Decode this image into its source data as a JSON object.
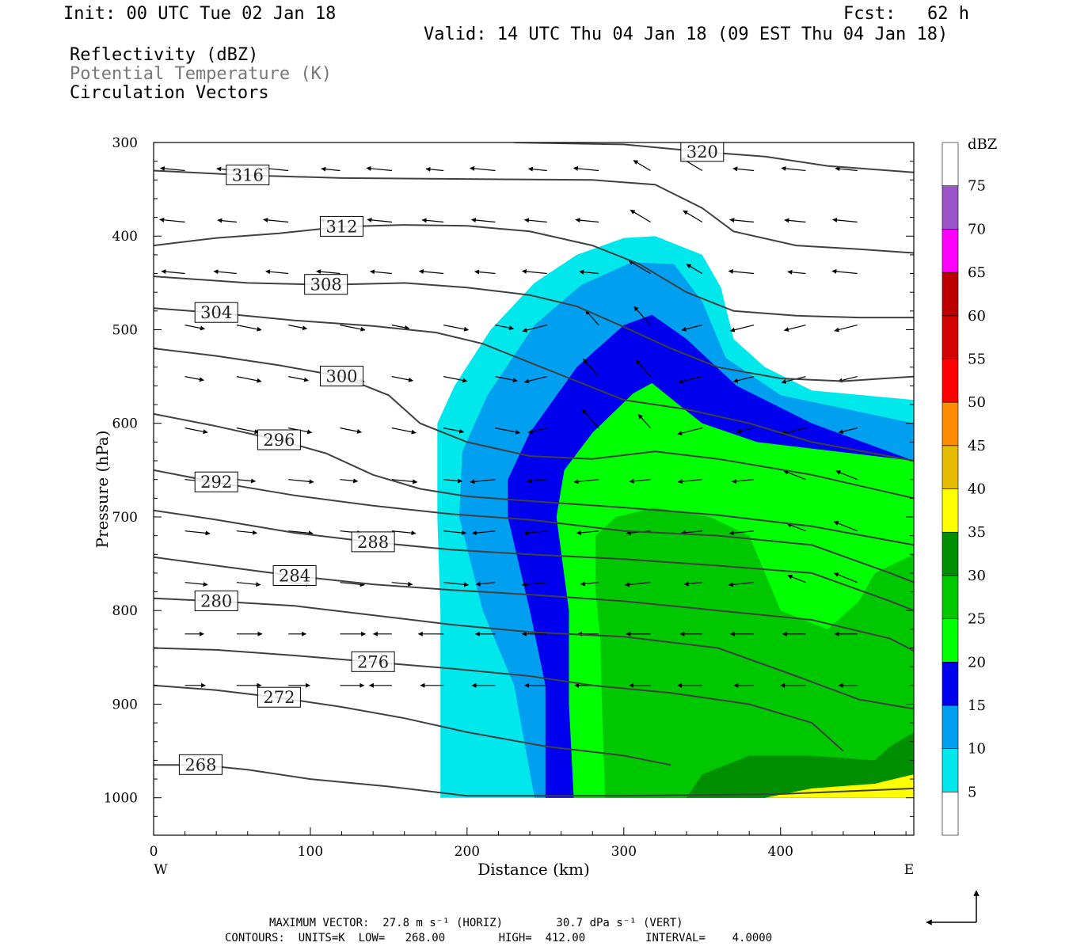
{
  "header": {
    "init": "Init: 00 UTC Tue 02 Jan 18",
    "fcst": "Fcst:   62 h",
    "valid": "Valid: 14 UTC Thu 04 Jan 18 (09 EST Thu 04 Jan 18)",
    "fields": [
      "Reflectivity (dBZ)",
      "Potential Temperature (K)",
      "Circulation Vectors"
    ]
  },
  "footer": {
    "max_vector": "MAXIMUM VECTOR:  27.8 m s⁻¹ (HORIZ)        30.7 dPa s⁻¹ (VERT)",
    "contours": "CONTOURS:  UNITS=K  LOW=   268.00        HIGH=  412.00         INTERVAL=    4.0000"
  },
  "chart_data": {
    "type": "cross-section",
    "xlabel": "Distance (km)",
    "ylabel": "Pressure (hPa)",
    "x_left_label": "W",
    "x_right_label": "E",
    "xlim": [
      0,
      485
    ],
    "ylim": [
      1040,
      300
    ],
    "x_ticks": [
      0,
      100,
      200,
      300,
      400
    ],
    "y_ticks": [
      300,
      400,
      500,
      600,
      700,
      800,
      900,
      1000
    ],
    "colorbar": {
      "title": "dBZ",
      "levels": [
        5,
        10,
        15,
        20,
        25,
        30,
        35,
        40,
        45,
        50,
        55,
        60,
        65,
        70,
        75
      ],
      "colors": [
        "#00e8ec",
        "#009ff0",
        "#0000ee",
        "#00ff00",
        "#00c800",
        "#008f00",
        "#ffff00",
        "#e6bc00",
        "#ff8c00",
        "#ff0000",
        "#d50000",
        "#bc0000",
        "#ff00ff",
        "#9a55c9"
      ]
    },
    "reflectivity_shading": [
      {
        "dbz_min": 5,
        "color": "#00e8ec",
        "outline": [
          [
            183,
            1000
          ],
          [
            183,
            900
          ],
          [
            183,
            800
          ],
          [
            181,
            700
          ],
          [
            181,
            600
          ],
          [
            192,
            560
          ],
          [
            215,
            500
          ],
          [
            243,
            450
          ],
          [
            270,
            420
          ],
          [
            300,
            402
          ],
          [
            320,
            400
          ],
          [
            350,
            420
          ],
          [
            362,
            455
          ],
          [
            370,
            510
          ],
          [
            390,
            540
          ],
          [
            420,
            565
          ],
          [
            485,
            575
          ],
          [
            485,
            1000
          ]
        ]
      },
      {
        "dbz_min": 10,
        "color": "#009ff0",
        "outline": [
          [
            243,
            1000
          ],
          [
            230,
            880
          ],
          [
            210,
            800
          ],
          [
            195,
            700
          ],
          [
            197,
            630
          ],
          [
            213,
            570
          ],
          [
            243,
            495
          ],
          [
            273,
            452
          ],
          [
            305,
            428
          ],
          [
            332,
            430
          ],
          [
            350,
            470
          ],
          [
            365,
            530
          ],
          [
            400,
            570
          ],
          [
            485,
            600
          ],
          [
            485,
            1000
          ]
        ]
      },
      {
        "dbz_min": 15,
        "color": "#0000ee",
        "outline": [
          [
            250,
            1000
          ],
          [
            250,
            880
          ],
          [
            240,
            800
          ],
          [
            226,
            700
          ],
          [
            226,
            660
          ],
          [
            240,
            610
          ],
          [
            270,
            540
          ],
          [
            300,
            495
          ],
          [
            318,
            484
          ],
          [
            340,
            510
          ],
          [
            372,
            560
          ],
          [
            420,
            600
          ],
          [
            485,
            640
          ],
          [
            485,
            1000
          ]
        ]
      },
      {
        "dbz_min": 20,
        "color": "#00ff00",
        "outline": [
          [
            268,
            1000
          ],
          [
            265,
            900
          ],
          [
            265,
            800
          ],
          [
            257,
            700
          ],
          [
            262,
            650
          ],
          [
            280,
            610
          ],
          [
            306,
            568
          ],
          [
            318,
            557
          ],
          [
            335,
            580
          ],
          [
            350,
            600
          ],
          [
            385,
            620
          ],
          [
            485,
            640
          ],
          [
            485,
            1000
          ]
        ]
      },
      {
        "dbz_min": 25,
        "color": "#00c800",
        "outline": [
          [
            288,
            1000
          ],
          [
            286,
            900
          ],
          [
            285,
            830
          ],
          [
            282,
            780
          ],
          [
            282,
            720
          ],
          [
            295,
            700
          ],
          [
            320,
            690
          ],
          [
            355,
            700
          ],
          [
            380,
            720
          ],
          [
            390,
            760
          ],
          [
            400,
            800
          ],
          [
            430,
            820
          ],
          [
            450,
            790
          ],
          [
            460,
            760
          ],
          [
            485,
            740
          ],
          [
            485,
            1000
          ]
        ]
      },
      {
        "dbz_min": 30,
        "color": "#008f00",
        "outline": [
          [
            340,
            1000
          ],
          [
            350,
            975
          ],
          [
            380,
            955
          ],
          [
            420,
            955
          ],
          [
            460,
            960
          ],
          [
            470,
            945
          ],
          [
            485,
            930
          ],
          [
            485,
            1000
          ]
        ]
      },
      {
        "dbz_min": 35,
        "color": "#ffff00",
        "outline": [
          [
            390,
            1000
          ],
          [
            420,
            990
          ],
          [
            460,
            985
          ],
          [
            485,
            975
          ],
          [
            485,
            1000
          ]
        ]
      }
    ],
    "theta_contours": [
      {
        "label": "268",
        "points": [
          [
            0,
            965
          ],
          [
            30,
            965
          ],
          [
            60,
            970
          ],
          [
            100,
            980
          ],
          [
            150,
            988
          ],
          [
            200,
            998
          ],
          [
            300,
            998
          ],
          [
            400,
            996
          ],
          [
            485,
            990
          ]
        ]
      },
      {
        "label": "272",
        "points": [
          [
            0,
            880
          ],
          [
            40,
            885
          ],
          [
            80,
            893
          ],
          [
            120,
            903
          ],
          [
            160,
            915
          ],
          [
            200,
            930
          ],
          [
            250,
            945
          ],
          [
            300,
            955
          ],
          [
            330,
            965
          ]
        ]
      },
      {
        "label": "276",
        "points": [
          [
            0,
            840
          ],
          [
            40,
            842
          ],
          [
            90,
            848
          ],
          [
            140,
            855
          ],
          [
            190,
            862
          ],
          [
            240,
            870
          ],
          [
            280,
            880
          ],
          [
            330,
            888
          ],
          [
            380,
            900
          ],
          [
            420,
            920
          ],
          [
            440,
            950
          ]
        ]
      },
      {
        "label": "280",
        "points": [
          [
            0,
            787
          ],
          [
            40,
            790
          ],
          [
            90,
            795
          ],
          [
            140,
            805
          ],
          [
            190,
            815
          ],
          [
            240,
            823
          ],
          [
            300,
            828
          ],
          [
            360,
            840
          ],
          [
            410,
            870
          ],
          [
            450,
            895
          ],
          [
            485,
            905
          ]
        ]
      },
      {
        "label": "284",
        "points": [
          [
            0,
            743
          ],
          [
            40,
            752
          ],
          [
            90,
            763
          ],
          [
            140,
            772
          ],
          [
            190,
            778
          ],
          [
            240,
            783
          ],
          [
            300,
            790
          ],
          [
            360,
            800
          ],
          [
            420,
            810
          ],
          [
            470,
            830
          ],
          [
            485,
            843
          ]
        ]
      },
      {
        "label": "288",
        "points": [
          [
            0,
            693
          ],
          [
            40,
            703
          ],
          [
            90,
            717
          ],
          [
            140,
            727
          ],
          [
            190,
            735
          ],
          [
            240,
            740
          ],
          [
            300,
            745
          ],
          [
            360,
            752
          ],
          [
            420,
            760
          ],
          [
            470,
            790
          ],
          [
            485,
            800
          ]
        ]
      },
      {
        "label": "292",
        "points": [
          [
            0,
            650
          ],
          [
            40,
            663
          ],
          [
            90,
            677
          ],
          [
            140,
            688
          ],
          [
            190,
            697
          ],
          [
            240,
            703
          ],
          [
            300,
            715
          ],
          [
            360,
            720
          ],
          [
            420,
            730
          ],
          [
            470,
            760
          ],
          [
            485,
            770
          ]
        ]
      },
      {
        "label": "296",
        "points": [
          [
            0,
            590
          ],
          [
            40,
            603
          ],
          [
            80,
            618
          ],
          [
            110,
            632
          ],
          [
            140,
            655
          ],
          [
            170,
            670
          ],
          [
            200,
            678
          ],
          [
            240,
            683
          ],
          [
            300,
            690
          ],
          [
            360,
            698
          ],
          [
            420,
            710
          ],
          [
            485,
            730
          ]
        ]
      },
      {
        "label": "300",
        "points": [
          [
            0,
            520
          ],
          [
            40,
            528
          ],
          [
            80,
            538
          ],
          [
            120,
            550
          ],
          [
            150,
            570
          ],
          [
            170,
            600
          ],
          [
            200,
            620
          ],
          [
            240,
            635
          ],
          [
            280,
            638
          ],
          [
            320,
            630
          ],
          [
            360,
            638
          ],
          [
            420,
            655
          ],
          [
            485,
            680
          ]
        ]
      },
      {
        "label": "304",
        "points": [
          [
            0,
            477
          ],
          [
            40,
            482
          ],
          [
            90,
            490
          ],
          [
            140,
            496
          ],
          [
            180,
            503
          ],
          [
            210,
            515
          ],
          [
            240,
            535
          ],
          [
            270,
            555
          ],
          [
            300,
            575
          ],
          [
            340,
            585
          ],
          [
            380,
            600
          ],
          [
            420,
            620
          ],
          [
            485,
            640
          ]
        ]
      },
      {
        "label": "308",
        "points": [
          [
            0,
            443
          ],
          [
            60,
            450
          ],
          [
            110,
            452
          ],
          [
            160,
            450
          ],
          [
            200,
            455
          ],
          [
            240,
            463
          ],
          [
            270,
            475
          ],
          [
            300,
            497
          ],
          [
            330,
            520
          ],
          [
            360,
            540
          ],
          [
            400,
            552
          ],
          [
            440,
            555
          ],
          [
            485,
            550
          ]
        ]
      },
      {
        "label": "312",
        "points": [
          [
            0,
            410
          ],
          [
            40,
            402
          ],
          [
            80,
            397
          ],
          [
            120,
            390
          ],
          [
            160,
            388
          ],
          [
            200,
            389
          ],
          [
            240,
            395
          ],
          [
            280,
            410
          ],
          [
            310,
            430
          ],
          [
            340,
            460
          ],
          [
            370,
            480
          ],
          [
            410,
            485
          ],
          [
            450,
            487
          ],
          [
            485,
            487
          ]
        ]
      },
      {
        "label": "316",
        "points": [
          [
            0,
            330
          ],
          [
            60,
            335
          ],
          [
            120,
            338
          ],
          [
            200,
            339
          ],
          [
            280,
            340
          ],
          [
            320,
            345
          ],
          [
            350,
            370
          ],
          [
            370,
            395
          ],
          [
            410,
            410
          ],
          [
            450,
            414
          ],
          [
            485,
            418
          ]
        ]
      },
      {
        "label": "320",
        "points": [
          [
            230,
            300
          ],
          [
            300,
            302
          ],
          [
            350,
            310
          ],
          [
            390,
            315
          ],
          [
            430,
            325
          ],
          [
            485,
            332
          ]
        ]
      }
    ]
  }
}
